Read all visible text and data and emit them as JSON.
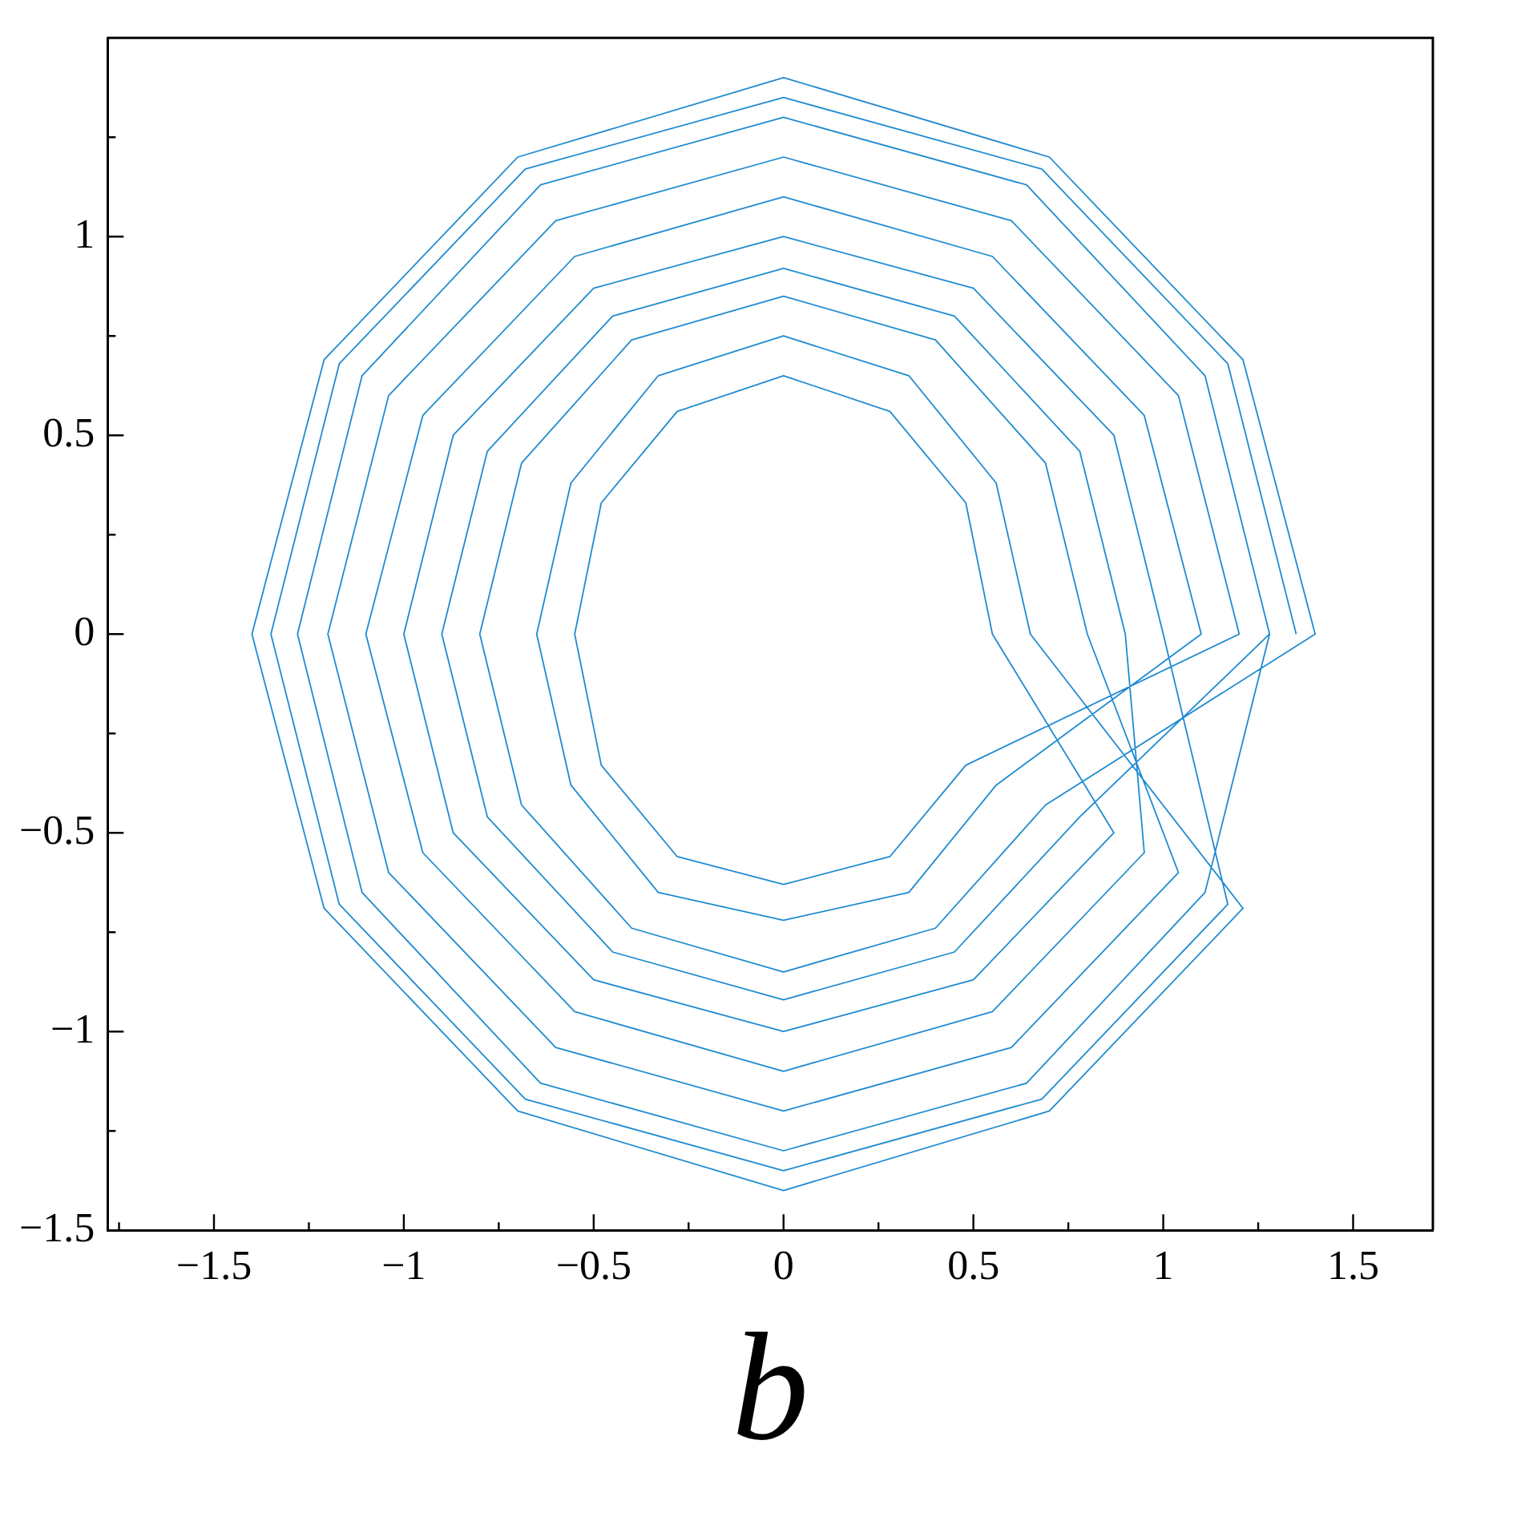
{
  "chart_data": {
    "type": "line",
    "xlabel": "b",
    "marker": "none",
    "line_style": "solid",
    "grid": false,
    "legend": false,
    "xlim": [
      -1.78,
      1.71
    ],
    "ylim": [
      -1.5,
      1.5
    ],
    "xticks": [
      {
        "value": -1.75,
        "label": null
      },
      {
        "value": -1.5,
        "label": "−1.5"
      },
      {
        "value": -1.25,
        "label": null
      },
      {
        "value": -1,
        "label": "−1"
      },
      {
        "value": -0.75,
        "label": null
      },
      {
        "value": -0.5,
        "label": "−0.5"
      },
      {
        "value": -0.25,
        "label": null
      },
      0,
      {
        "value": 0.25,
        "label": null
      },
      0.5,
      {
        "value": 0.75,
        "label": null
      },
      1,
      {
        "value": 1.25,
        "label": null
      },
      1.5
    ],
    "yticks": [
      {
        "value": -1.5,
        "label": "−1.5"
      },
      {
        "value": -1.25,
        "label": null
      },
      {
        "value": -1,
        "label": "−1"
      },
      {
        "value": -0.75,
        "label": null
      },
      {
        "value": -0.5,
        "label": "−0.5"
      },
      {
        "value": -0.25,
        "label": null
      },
      0,
      {
        "value": 0.25,
        "label": null
      },
      0.5,
      {
        "value": 0.75,
        "label": null
      },
      1,
      {
        "value": 1.25,
        "label": null
      }
    ],
    "series": [
      {
        "color": "#1f8bd0",
        "x": [
          1.35,
          1.17,
          0.68,
          0,
          -0.68,
          -1.17,
          -1.35,
          -1.17,
          -0.68,
          0,
          0.68,
          1.17,
          1,
          0.87,
          0.5,
          0,
          -0.5,
          -0.87,
          -1,
          -0.87,
          -0.5,
          0,
          0.5,
          0.87,
          0.55,
          0.48,
          0.28,
          0,
          -0.28,
          -0.48,
          -0.55,
          -0.48,
          -0.28,
          0,
          0.28,
          0.48,
          1.2,
          1.04,
          0.6,
          0,
          -0.6,
          -1.04,
          -1.2,
          -1.04,
          -0.6,
          0,
          0.6,
          1.04,
          0.8,
          0.69,
          0.4,
          0,
          -0.4,
          -0.69,
          -0.8,
          -0.69,
          -0.4,
          0,
          0.4,
          0.69,
          1.4,
          1.21,
          0.7,
          0,
          -0.7,
          -1.21,
          -1.4,
          -1.21,
          -0.7,
          0,
          0.7,
          1.21,
          0.65,
          0.56,
          0.33,
          0,
          -0.33,
          -0.56,
          -0.65,
          -0.56,
          -0.33,
          0,
          0.33,
          0.56,
          1.1,
          0.95,
          0.55,
          0,
          -0.55,
          -0.95,
          -1.1,
          -0.95,
          -0.55,
          0,
          0.55,
          0.95,
          0.9,
          0.78,
          0.45,
          0,
          -0.45,
          -0.78,
          -0.9,
          -0.78,
          -0.45,
          0,
          0.45,
          0.78,
          1.28,
          1.11,
          0.64,
          0,
          -0.64,
          -1.11,
          -1.28,
          -1.11,
          -0.64,
          0,
          0.64,
          1.11,
          1.28
        ],
        "values": [
          0,
          0.68,
          1.17,
          1.35,
          1.17,
          0.68,
          0,
          -0.68,
          -1.17,
          -1.35,
          -1.17,
          -0.68,
          0,
          0.5,
          0.87,
          1,
          0.87,
          0.5,
          0,
          -0.5,
          -0.87,
          -1,
          -0.87,
          -0.5,
          0,
          0.33,
          0.56,
          0.65,
          0.56,
          0.33,
          0,
          -0.33,
          -0.56,
          -0.63,
          -0.56,
          -0.33,
          0,
          0.6,
          1.04,
          1.2,
          1.04,
          0.6,
          0,
          -0.6,
          -1.04,
          -1.2,
          -1.04,
          -0.6,
          0,
          0.43,
          0.74,
          0.85,
          0.74,
          0.43,
          0,
          -0.43,
          -0.74,
          -0.85,
          -0.74,
          -0.43,
          0,
          0.69,
          1.2,
          1.4,
          1.2,
          0.69,
          0,
          -0.69,
          -1.2,
          -1.4,
          -1.2,
          -0.69,
          0,
          0.38,
          0.65,
          0.75,
          0.65,
          0.38,
          0,
          -0.38,
          -0.65,
          -0.72,
          -0.65,
          -0.38,
          0,
          0.55,
          0.95,
          1.1,
          0.95,
          0.55,
          0,
          -0.55,
          -0.95,
          -1.1,
          -0.95,
          -0.55,
          0,
          0.46,
          0.8,
          0.92,
          0.8,
          0.46,
          0,
          -0.46,
          -0.8,
          -0.92,
          -0.8,
          -0.46,
          0,
          0.65,
          1.13,
          1.3,
          1.13,
          0.65,
          0,
          -0.65,
          -1.13,
          -1.3,
          -1.13,
          -0.65,
          0
        ]
      }
    ]
  }
}
